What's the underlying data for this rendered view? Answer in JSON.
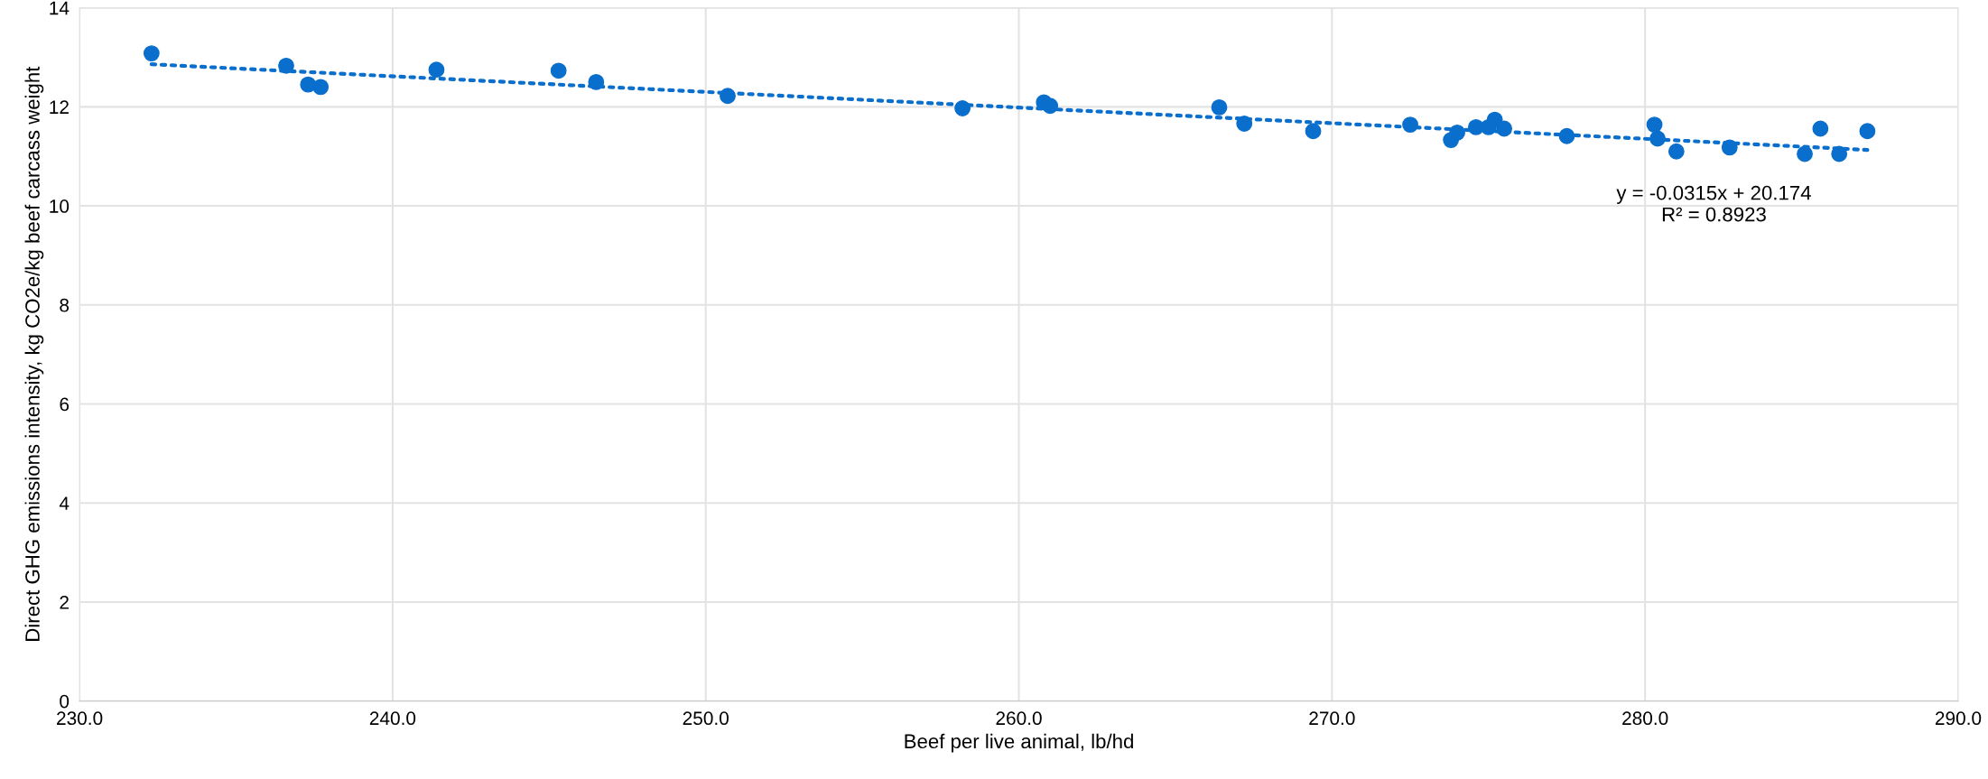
{
  "chart_data": {
    "type": "scatter",
    "xlabel": "Beef per live animal, lb/hd",
    "ylabel": "Direct GHG emissions intensity, kg CO2e/kg beef carcass weight",
    "series": [
      {
        "color": "#0a6fcc",
        "marker": "circle",
        "x": [
          232.3,
          236.6,
          237.3,
          237.7,
          241.4,
          245.3,
          246.5,
          250.7,
          258.2,
          260.8,
          261.0,
          266.4,
          267.2,
          269.4,
          272.5,
          273.8,
          274.0,
          274.6,
          275.0,
          275.2,
          275.5,
          277.5,
          280.3,
          280.4,
          281.0,
          282.7,
          285.1,
          285.6,
          286.2,
          287.1
        ],
        "values": [
          13.08,
          12.83,
          12.45,
          12.4,
          12.75,
          12.73,
          12.5,
          12.22,
          11.97,
          12.09,
          12.02,
          11.99,
          11.66,
          11.51,
          11.64,
          11.33,
          11.48,
          11.59,
          11.59,
          11.74,
          11.56,
          11.41,
          11.64,
          11.36,
          11.1,
          11.18,
          11.05,
          11.56,
          11.05,
          11.51
        ]
      },
      {
        "type": "line",
        "color": "#0a6fcc",
        "line_style": "dotted",
        "x": [
          232.3,
          287.1
        ],
        "values": [
          12.86,
          11.13
        ]
      }
    ],
    "annotations": [
      "y = -0.0315x + 20.174\nR² = 0.8923"
    ],
    "xlim": [
      230,
      290
    ],
    "xticks": [
      {
        "value": 230,
        "label": "230.0"
      },
      {
        "value": 240,
        "label": "240.0"
      },
      {
        "value": 250,
        "label": "250.0"
      },
      {
        "value": 260,
        "label": "260.0"
      },
      {
        "value": 270,
        "label": "270.0"
      },
      {
        "value": 280,
        "label": "280.0"
      },
      {
        "value": 290,
        "label": "290.0"
      }
    ],
    "ylim": [
      0,
      14
    ],
    "yticks": [
      0,
      2,
      4,
      6,
      8,
      10,
      12,
      14
    ],
    "grid": true,
    "legend": false
  }
}
